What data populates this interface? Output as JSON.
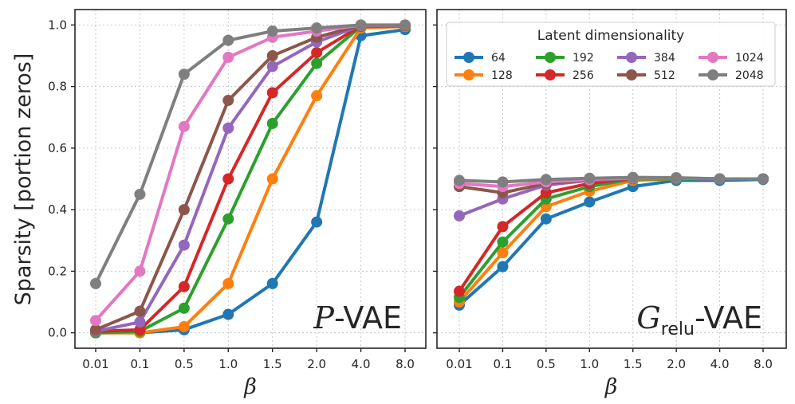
{
  "chart_data": [
    {
      "type": "line",
      "panel_label_script": "P",
      "panel_label_rest": "-VAE",
      "xlabel": "β",
      "ylabel": "Sparsity  [portion zeros]",
      "categories": [
        "0.01",
        "0.1",
        "0.5",
        "1.0",
        "1.5",
        "2.0",
        "4.0",
        "8.0"
      ],
      "yticks": [
        "0.0",
        "0.2",
        "0.4",
        "0.6",
        "0.8",
        "1.0"
      ],
      "ylim": [
        -0.05,
        1.05
      ],
      "grid": true,
      "series": [
        {
          "name": "64",
          "color": "#1f77b4",
          "values": [
            0.0,
            0.0,
            0.01,
            0.06,
            0.16,
            0.36,
            0.965,
            0.985
          ]
        },
        {
          "name": "128",
          "color": "#ff7f0e",
          "values": [
            0.0,
            0.0,
            0.02,
            0.16,
            0.5,
            0.77,
            0.99,
            0.995
          ]
        },
        {
          "name": "192",
          "color": "#2ca02c",
          "values": [
            0.0,
            0.005,
            0.08,
            0.37,
            0.68,
            0.875,
            0.995,
            0.997
          ]
        },
        {
          "name": "256",
          "color": "#d62728",
          "values": [
            0.005,
            0.01,
            0.15,
            0.5,
            0.78,
            0.91,
            0.997,
            0.998
          ]
        },
        {
          "name": "384",
          "color": "#9467bd",
          "values": [
            0.005,
            0.035,
            0.285,
            0.665,
            0.865,
            0.945,
            0.998,
            0.999
          ]
        },
        {
          "name": "512",
          "color": "#8c564b",
          "values": [
            0.01,
            0.07,
            0.4,
            0.755,
            0.9,
            0.96,
            0.999,
            0.999
          ]
        },
        {
          "name": "1024",
          "color": "#e377c2",
          "values": [
            0.04,
            0.2,
            0.67,
            0.895,
            0.96,
            0.98,
            0.999,
            1.0
          ]
        },
        {
          "name": "2048",
          "color": "#7f7f7f",
          "values": [
            0.16,
            0.45,
            0.84,
            0.95,
            0.98,
            0.99,
            1.0,
            1.0
          ]
        }
      ]
    },
    {
      "type": "line",
      "panel_label_script": "G",
      "panel_label_sub": "relu",
      "panel_label_rest": "-VAE",
      "xlabel": "β",
      "categories": [
        "0.01",
        "0.1",
        "0.5",
        "1.0",
        "1.5",
        "2.0",
        "4.0",
        "8.0"
      ],
      "ylim": [
        -0.05,
        1.05
      ],
      "grid": true,
      "legend": {
        "title": "Latent dimensionality",
        "position": "top-right",
        "columns": 4
      },
      "series": [
        {
          "name": "64",
          "color": "#1f77b4",
          "values": [
            0.09,
            0.215,
            0.37,
            0.425,
            0.475,
            0.495,
            0.495,
            0.498
          ]
        },
        {
          "name": "128",
          "color": "#ff7f0e",
          "values": [
            0.1,
            0.26,
            0.41,
            0.46,
            0.495,
            0.5,
            0.5,
            0.5
          ]
        },
        {
          "name": "192",
          "color": "#2ca02c",
          "values": [
            0.115,
            0.295,
            0.435,
            0.475,
            0.5,
            0.5,
            0.5,
            0.5
          ]
        },
        {
          "name": "256",
          "color": "#d62728",
          "values": [
            0.135,
            0.345,
            0.455,
            0.485,
            0.502,
            0.502,
            0.5,
            0.5
          ]
        },
        {
          "name": "384",
          "color": "#9467bd",
          "values": [
            0.38,
            0.435,
            0.48,
            0.495,
            0.502,
            0.502,
            0.5,
            0.5
          ]
        },
        {
          "name": "512",
          "color": "#8c564b",
          "values": [
            0.475,
            0.455,
            0.485,
            0.497,
            0.503,
            0.503,
            0.5,
            0.5
          ]
        },
        {
          "name": "1024",
          "color": "#e377c2",
          "values": [
            0.485,
            0.475,
            0.49,
            0.498,
            0.503,
            0.503,
            0.5,
            0.5
          ]
        },
        {
          "name": "2048",
          "color": "#7f7f7f",
          "values": [
            0.495,
            0.49,
            0.498,
            0.502,
            0.505,
            0.504,
            0.5,
            0.5
          ]
        }
      ]
    }
  ]
}
